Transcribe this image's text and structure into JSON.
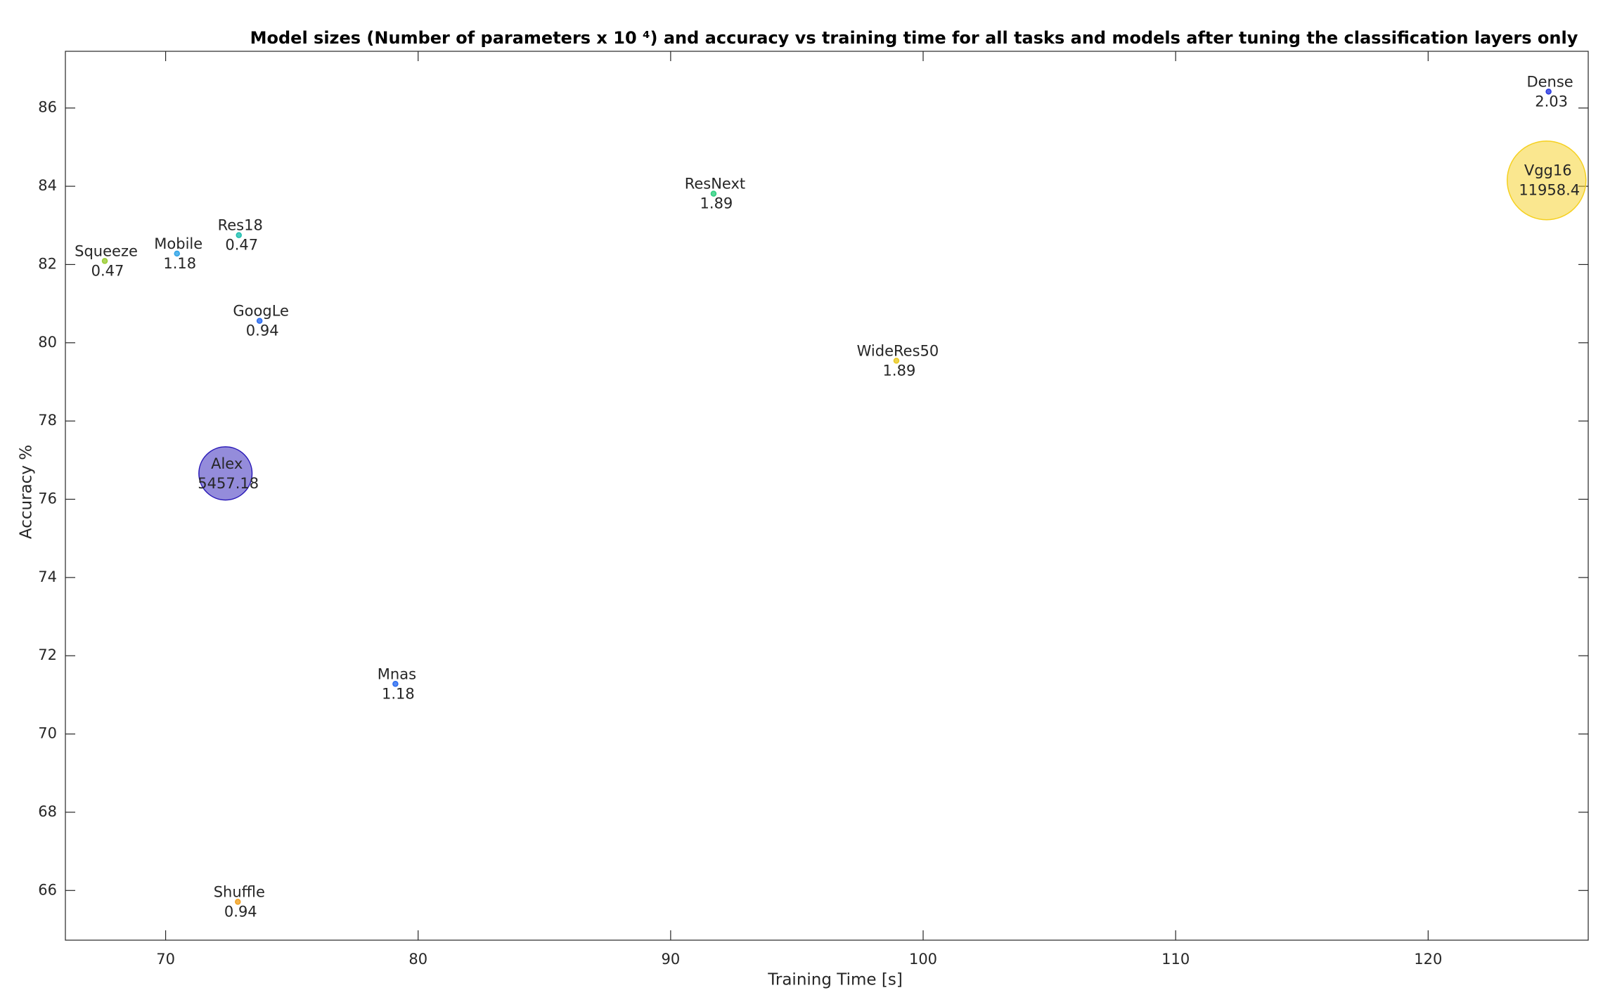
{
  "chart_data": {
    "type": "bubble",
    "title": "Model sizes (Number of parameters x 10 ⁴) and accuracy vs training time for all tasks and models after tuning the classification layers only",
    "x_label": "Training Time [s]",
    "y_label": "Accuracy %",
    "xlim": [
      66.03,
      126.34
    ],
    "ylim": [
      64.73,
      87.45
    ],
    "xticks": [
      70,
      80,
      90,
      100,
      110,
      120
    ],
    "yticks": [
      66,
      68,
      70,
      72,
      74,
      76,
      78,
      80,
      82,
      84,
      86
    ],
    "names": [
      "Squeeze",
      "Mobile",
      "Res18",
      "GoogLe",
      "Alex",
      "Shuffle",
      "Mnas",
      "ResNext",
      "WideRes50",
      "Dense",
      "Vgg16"
    ],
    "x": [
      67.59,
      70.45,
      72.9,
      73.72,
      72.37,
      72.86,
      79.1,
      91.7,
      98.94,
      124.77,
      124.69
    ],
    "y": [
      82.09,
      82.28,
      82.75,
      80.56,
      76.66,
      65.71,
      71.28,
      83.81,
      79.54,
      86.42,
      84.15
    ],
    "sizes": [
      0.47,
      1.18,
      0.47,
      0.94,
      5457.18,
      0.94,
      1.18,
      1.89,
      1.89,
      2.03,
      11958.4
    ],
    "colors": [
      "#9acd32",
      "#2fa4e7",
      "#1fbfb0",
      "#2a6cf0",
      "#2a1ab8",
      "#f0a020",
      "#2a6cf0",
      "#2ed080",
      "#e8c820",
      "#2a3adf",
      "#f5d020"
    ]
  }
}
